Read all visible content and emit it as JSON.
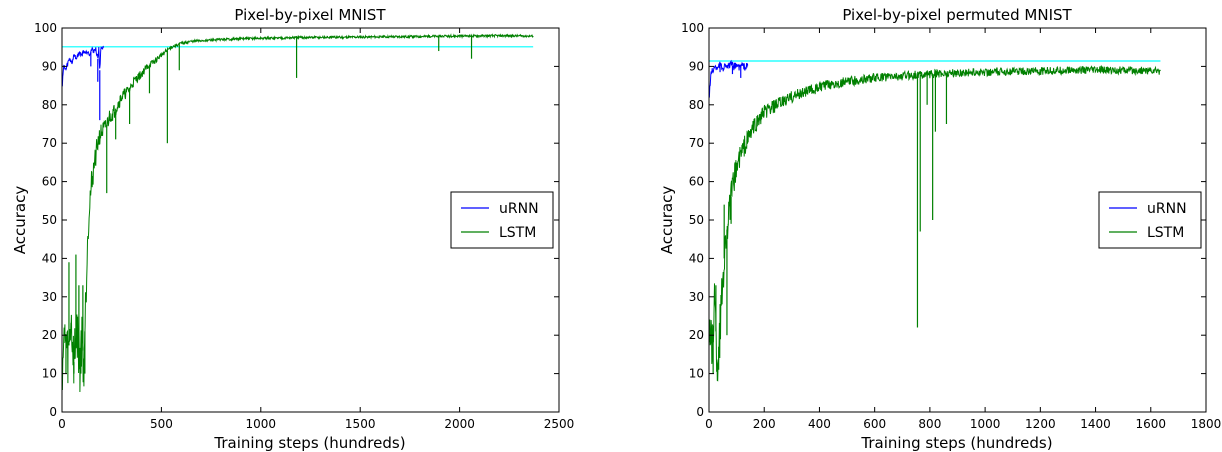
{
  "chart_data": [
    {
      "type": "line",
      "title": "Pixel-by-pixel MNIST",
      "xlabel": "Training steps (hundreds)",
      "ylabel": "Accuracy",
      "xlim": [
        0,
        2500
      ],
      "ylim": [
        0,
        100
      ],
      "xticks": [
        0,
        500,
        1000,
        1500,
        2000,
        2500
      ],
      "yticks": [
        0,
        10,
        20,
        30,
        40,
        50,
        60,
        70,
        80,
        90,
        100
      ],
      "grid": false,
      "legend": "center-right",
      "reference_line": {
        "y": 95.1,
        "x": [
          0,
          2370
        ],
        "color": "#00ffff"
      },
      "series": [
        {
          "name": "uRNN",
          "color": "#0000ff",
          "points": [
            [
              0,
              85
            ],
            [
              5,
              88
            ],
            [
              10,
              90
            ],
            [
              20,
              89
            ],
            [
              30,
              91
            ],
            [
              40,
              92
            ],
            [
              50,
              91
            ],
            [
              60,
              93
            ],
            [
              70,
              92
            ],
            [
              80,
              93
            ],
            [
              90,
              93.5
            ],
            [
              100,
              93
            ],
            [
              110,
              94
            ],
            [
              120,
              93.5
            ],
            [
              130,
              94
            ],
            [
              140,
              93.2
            ],
            [
              150,
              94.5
            ],
            [
              160,
              94
            ],
            [
              170,
              94.6
            ],
            [
              180,
              92
            ],
            [
              185,
              94.8
            ],
            [
              190,
              89
            ],
            [
              195,
              94.6
            ],
            [
              200,
              94.8
            ],
            [
              205,
              94.7
            ],
            [
              210,
              94.9
            ]
          ],
          "dips": [
            [
              190,
              76
            ],
            [
              180,
              86
            ],
            [
              145,
              90
            ]
          ]
        },
        {
          "name": "LSTM",
          "color": "#008000",
          "points": [
            [
              0,
              12
            ],
            [
              15,
              20
            ],
            [
              30,
              14
            ],
            [
              45,
              24
            ],
            [
              60,
              13
            ],
            [
              75,
              22
            ],
            [
              90,
              12
            ],
            [
              100,
              20
            ],
            [
              110,
              12
            ],
            [
              120,
              30
            ],
            [
              130,
              48
            ],
            [
              140,
              55
            ],
            [
              150,
              60
            ],
            [
              160,
              64
            ],
            [
              170,
              67
            ],
            [
              180,
              70
            ],
            [
              190,
              72
            ],
            [
              200,
              73
            ],
            [
              220,
              74
            ],
            [
              240,
              77
            ],
            [
              260,
              78
            ],
            [
              280,
              80
            ],
            [
              300,
              82
            ],
            [
              320,
              83
            ],
            [
              340,
              84
            ],
            [
              360,
              86
            ],
            [
              380,
              87
            ],
            [
              400,
              88
            ],
            [
              430,
              90
            ],
            [
              460,
              91
            ],
            [
              500,
              93
            ],
            [
              550,
              95
            ],
            [
              600,
              96
            ],
            [
              650,
              96.5
            ],
            [
              700,
              96.7
            ],
            [
              800,
              97
            ],
            [
              900,
              97.2
            ],
            [
              1000,
              97.3
            ],
            [
              1200,
              97.5
            ],
            [
              1400,
              97.6
            ],
            [
              1600,
              97.7
            ],
            [
              1800,
              97.8
            ],
            [
              2000,
              97.9
            ],
            [
              2200,
              98
            ],
            [
              2370,
              97.9
            ]
          ],
          "dips": [
            [
              20,
              10
            ],
            [
              35,
              39
            ],
            [
              60,
              10
            ],
            [
              70,
              41
            ],
            [
              85,
              33
            ],
            [
              95,
              10
            ],
            [
              105,
              33
            ],
            [
              115,
              10
            ],
            [
              225,
              57
            ],
            [
              270,
              71
            ],
            [
              340,
              75
            ],
            [
              440,
              83
            ],
            [
              530,
              70
            ],
            [
              590,
              89
            ],
            [
              1180,
              87
            ],
            [
              1895,
              94
            ],
            [
              2060,
              92
            ]
          ]
        }
      ]
    },
    {
      "type": "line",
      "title": "Pixel-by-pixel permuted MNIST",
      "xlabel": "Training steps (hundreds)",
      "ylabel": "Accuracy",
      "xlim": [
        0,
        1800
      ],
      "ylim": [
        0,
        100
      ],
      "xticks": [
        0,
        200,
        400,
        600,
        800,
        1000,
        1200,
        1400,
        1600,
        1800
      ],
      "yticks": [
        0,
        10,
        20,
        30,
        40,
        50,
        60,
        70,
        80,
        90,
        100
      ],
      "grid": false,
      "legend": "center-right",
      "reference_line": {
        "y": 91.4,
        "x": [
          0,
          1635
        ],
        "color": "#00ffff"
      },
      "series": [
        {
          "name": "uRNN",
          "color": "#0000ff",
          "points": [
            [
              0,
              82
            ],
            [
              5,
              86
            ],
            [
              10,
              89
            ],
            [
              20,
              89.5
            ],
            [
              30,
              90
            ],
            [
              40,
              90.5
            ],
            [
              50,
              89.5
            ],
            [
              60,
              90.5
            ],
            [
              70,
              90
            ],
            [
              80,
              90.6
            ],
            [
              90,
              89.8
            ],
            [
              100,
              90.5
            ],
            [
              110,
              89.6
            ],
            [
              120,
              90.4
            ],
            [
              130,
              89.8
            ],
            [
              140,
              90.2
            ]
          ],
          "dips": [
            [
              115,
              87
            ],
            [
              85,
              88
            ],
            [
              40,
              88.5
            ]
          ]
        },
        {
          "name": "LSTM",
          "color": "#008000",
          "points": [
            [
              0,
              25
            ],
            [
              10,
              15
            ],
            [
              20,
              30
            ],
            [
              30,
              12
            ],
            [
              40,
              22
            ],
            [
              50,
              35
            ],
            [
              60,
              45
            ],
            [
              70,
              50
            ],
            [
              80,
              56
            ],
            [
              90,
              60
            ],
            [
              100,
              64
            ],
            [
              120,
              68
            ],
            [
              140,
              71
            ],
            [
              160,
              74
            ],
            [
              180,
              76
            ],
            [
              200,
              78
            ],
            [
              250,
              80
            ],
            [
              300,
              82
            ],
            [
              350,
              83.5
            ],
            [
              400,
              84.5
            ],
            [
              450,
              85.5
            ],
            [
              500,
              86
            ],
            [
              600,
              87
            ],
            [
              700,
              87.5
            ],
            [
              750,
              87.8
            ],
            [
              800,
              88
            ],
            [
              900,
              88.3
            ],
            [
              1000,
              88.5
            ],
            [
              1100,
              88.7
            ],
            [
              1200,
              88.8
            ],
            [
              1300,
              89
            ],
            [
              1400,
              89
            ],
            [
              1500,
              89
            ],
            [
              1635,
              88.8
            ]
          ],
          "dips": [
            [
              15,
              10
            ],
            [
              25,
              33
            ],
            [
              35,
              11
            ],
            [
              55,
              54
            ],
            [
              65,
              20
            ],
            [
              80,
              49
            ],
            [
              755,
              22
            ],
            [
              765,
              47
            ],
            [
              790,
              80
            ],
            [
              810,
              50
            ],
            [
              820,
              73
            ],
            [
              860,
              75
            ]
          ]
        }
      ]
    }
  ]
}
